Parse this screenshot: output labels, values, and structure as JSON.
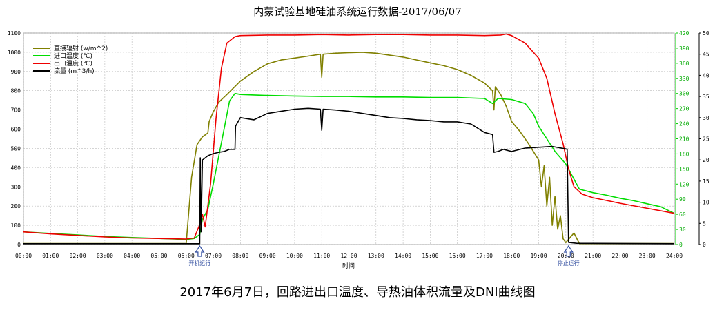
{
  "chart_data": {
    "type": "line",
    "title": "内蒙试验基地硅油系统运行数据-2017/06/07",
    "xlabel": "时间",
    "x_ticks": [
      "00:00",
      "01:00",
      "02:00",
      "03:00",
      "04:00",
      "05:00",
      "06:00",
      "07:00",
      "08:00",
      "09:00",
      "10:00",
      "11:00",
      "12:00",
      "13:00",
      "14:00",
      "15:00",
      "16:00",
      "17:00",
      "18:00",
      "19:00",
      "20:00",
      "21:00",
      "22:00",
      "23:00",
      "24:00"
    ],
    "xlim": [
      0,
      24
    ],
    "y_left": {
      "ylim": [
        0,
        1100
      ],
      "ticks": [
        0,
        100,
        200,
        300,
        400,
        500,
        600,
        700,
        800,
        900,
        1000,
        1100
      ]
    },
    "y_mid": {
      "ylim": [
        0,
        420
      ],
      "ticks": [
        0,
        30,
        60,
        90,
        120,
        150,
        180,
        210,
        240,
        270,
        300,
        330,
        360,
        390,
        420
      ]
    },
    "y_right": {
      "ylim": [
        0,
        50
      ],
      "ticks": [
        0,
        5,
        10,
        15,
        20,
        25,
        30,
        35,
        40,
        45,
        50
      ]
    },
    "grid": true,
    "legend_position": "top-left",
    "series": [
      {
        "name": "直接辐射 (w/m^2)",
        "color": "#808000",
        "axis": "left",
        "points": [
          [
            0,
            5
          ],
          [
            5.5,
            5
          ],
          [
            6.0,
            5
          ],
          [
            6.2,
            350
          ],
          [
            6.4,
            520
          ],
          [
            6.6,
            560
          ],
          [
            6.8,
            580
          ],
          [
            6.85,
            640
          ],
          [
            7.0,
            690
          ],
          [
            7.2,
            740
          ],
          [
            7.5,
            780
          ],
          [
            8.0,
            850
          ],
          [
            8.5,
            900
          ],
          [
            9.0,
            940
          ],
          [
            9.5,
            960
          ],
          [
            10.0,
            970
          ],
          [
            10.5,
            980
          ],
          [
            10.95,
            990
          ],
          [
            11.0,
            870
          ],
          [
            11.05,
            990
          ],
          [
            11.5,
            995
          ],
          [
            12.0,
            998
          ],
          [
            12.5,
            1000
          ],
          [
            13.0,
            995
          ],
          [
            13.5,
            985
          ],
          [
            14.0,
            975
          ],
          [
            14.5,
            960
          ],
          [
            15.0,
            945
          ],
          [
            15.5,
            930
          ],
          [
            16.0,
            910
          ],
          [
            16.5,
            880
          ],
          [
            17.0,
            840
          ],
          [
            17.3,
            800
          ],
          [
            17.35,
            700
          ],
          [
            17.4,
            820
          ],
          [
            17.6,
            780
          ],
          [
            17.8,
            720
          ],
          [
            18.0,
            640
          ],
          [
            18.3,
            590
          ],
          [
            18.6,
            530
          ],
          [
            19.0,
            440
          ],
          [
            19.1,
            300
          ],
          [
            19.2,
            410
          ],
          [
            19.3,
            200
          ],
          [
            19.4,
            350
          ],
          [
            19.5,
            100
          ],
          [
            19.6,
            250
          ],
          [
            19.7,
            80
          ],
          [
            19.8,
            150
          ],
          [
            19.9,
            30
          ],
          [
            20.0,
            10
          ],
          [
            20.3,
            60
          ],
          [
            20.5,
            5
          ],
          [
            24,
            5
          ]
        ]
      },
      {
        "name": "进口温度 (℃)",
        "color": "#00dd00",
        "axis": "mid",
        "points": [
          [
            0,
            25
          ],
          [
            1,
            22
          ],
          [
            2,
            19
          ],
          [
            3,
            16
          ],
          [
            4,
            14
          ],
          [
            5,
            12
          ],
          [
            6.0,
            10
          ],
          [
            6.3,
            12
          ],
          [
            6.5,
            20
          ],
          [
            6.6,
            50
          ],
          [
            6.8,
            70
          ],
          [
            7.0,
            120
          ],
          [
            7.2,
            175
          ],
          [
            7.4,
            230
          ],
          [
            7.6,
            285
          ],
          [
            7.8,
            300
          ],
          [
            8.0,
            298
          ],
          [
            8.5,
            297
          ],
          [
            9.0,
            296
          ],
          [
            10.0,
            295
          ],
          [
            11.0,
            294
          ],
          [
            12.0,
            294
          ],
          [
            13.0,
            293
          ],
          [
            14.0,
            293
          ],
          [
            15.0,
            292
          ],
          [
            16.0,
            292
          ],
          [
            17.0,
            290
          ],
          [
            17.3,
            280
          ],
          [
            17.5,
            290
          ],
          [
            18.0,
            288
          ],
          [
            18.5,
            280
          ],
          [
            18.8,
            260
          ],
          [
            19.0,
            235
          ],
          [
            19.3,
            210
          ],
          [
            19.6,
            185
          ],
          [
            20.0,
            160
          ],
          [
            20.2,
            140
          ],
          [
            20.5,
            110
          ],
          [
            21.0,
            103
          ],
          [
            21.5,
            98
          ],
          [
            22.0,
            92
          ],
          [
            22.5,
            87
          ],
          [
            23.0,
            81
          ],
          [
            23.5,
            75
          ],
          [
            24.0,
            62
          ]
        ]
      },
      {
        "name": "出口温度 (℃)",
        "color": "#ee0000",
        "axis": "mid",
        "points": [
          [
            0,
            25
          ],
          [
            1,
            21
          ],
          [
            2,
            18
          ],
          [
            3,
            15
          ],
          [
            4,
            13
          ],
          [
            5,
            12
          ],
          [
            6.0,
            11
          ],
          [
            6.3,
            13
          ],
          [
            6.5,
            40
          ],
          [
            6.6,
            60
          ],
          [
            6.7,
            35
          ],
          [
            6.9,
            120
          ],
          [
            7.1,
            250
          ],
          [
            7.3,
            350
          ],
          [
            7.5,
            400
          ],
          [
            7.8,
            413
          ],
          [
            8.0,
            415
          ],
          [
            9.0,
            416
          ],
          [
            10.0,
            416
          ],
          [
            11.0,
            417
          ],
          [
            12.0,
            416
          ],
          [
            13.0,
            417
          ],
          [
            14.0,
            417
          ],
          [
            15.0,
            416
          ],
          [
            16.0,
            416
          ],
          [
            17.0,
            415
          ],
          [
            17.6,
            416
          ],
          [
            17.8,
            418
          ],
          [
            18.0,
            415
          ],
          [
            18.5,
            400
          ],
          [
            19.0,
            370
          ],
          [
            19.3,
            330
          ],
          [
            19.6,
            260
          ],
          [
            19.9,
            200
          ],
          [
            20.1,
            150
          ],
          [
            20.3,
            115
          ],
          [
            20.6,
            100
          ],
          [
            21.0,
            93
          ],
          [
            22.0,
            82
          ],
          [
            23.0,
            72
          ],
          [
            24.0,
            62
          ]
        ]
      },
      {
        "name": "流量 (m^3/h)",
        "color": "#000000",
        "axis": "right",
        "points": [
          [
            0,
            0.2
          ],
          [
            6.0,
            0.2
          ],
          [
            6.5,
            0.2
          ],
          [
            6.52,
            20.5
          ],
          [
            6.55,
            3
          ],
          [
            6.6,
            20
          ],
          [
            6.8,
            21
          ],
          [
            7.0,
            21.5
          ],
          [
            7.2,
            21.8
          ],
          [
            7.4,
            22
          ],
          [
            7.6,
            22.5
          ],
          [
            7.8,
            22.5
          ],
          [
            7.82,
            28
          ],
          [
            8.0,
            30
          ],
          [
            8.5,
            29.5
          ],
          [
            9.0,
            31
          ],
          [
            9.5,
            31.5
          ],
          [
            10.0,
            32
          ],
          [
            10.5,
            32.2
          ],
          [
            10.95,
            32
          ],
          [
            11.0,
            27
          ],
          [
            11.05,
            32
          ],
          [
            11.5,
            31.8
          ],
          [
            12.0,
            31.5
          ],
          [
            12.5,
            31
          ],
          [
            13.0,
            30.5
          ],
          [
            13.5,
            30
          ],
          [
            14.0,
            29.8
          ],
          [
            14.5,
            29.5
          ],
          [
            15.0,
            29.3
          ],
          [
            15.5,
            29
          ],
          [
            16.0,
            29
          ],
          [
            16.5,
            28.5
          ],
          [
            17.0,
            26.5
          ],
          [
            17.3,
            26
          ],
          [
            17.35,
            21.8
          ],
          [
            17.5,
            22
          ],
          [
            17.7,
            22.5
          ],
          [
            18.0,
            22
          ],
          [
            18.5,
            22.8
          ],
          [
            19.0,
            23
          ],
          [
            19.5,
            23.2
          ],
          [
            20.0,
            22.6
          ],
          [
            20.05,
            22.5
          ],
          [
            20.1,
            0.5
          ],
          [
            20.4,
            0.3
          ],
          [
            24,
            0.2
          ]
        ]
      }
    ],
    "annotations": [
      {
        "text": "开机运行",
        "x": 6.5
      },
      {
        "text": "停止运行",
        "x": 20.1
      }
    ]
  },
  "caption": "2017年6月7日，回路进出口温度、导热油体积流量及DNI曲线图"
}
